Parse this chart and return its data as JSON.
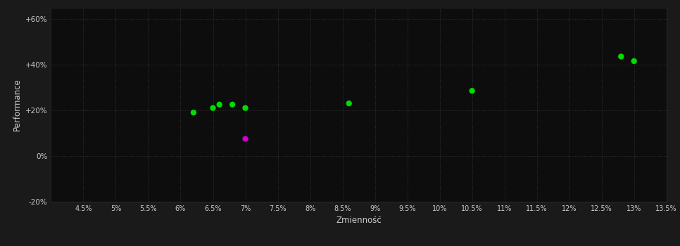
{
  "xlabel": "Zmienność",
  "ylabel": "Performance",
  "background_color": "#1a1a1a",
  "plot_bg_color": "#0d0d0d",
  "grid_color": "#333333",
  "text_color": "#cccccc",
  "xlim": [
    0.04,
    0.135
  ],
  "ylim": [
    -0.2,
    0.65
  ],
  "xticks": [
    0.045,
    0.05,
    0.055,
    0.06,
    0.065,
    0.07,
    0.075,
    0.08,
    0.085,
    0.09,
    0.095,
    0.1,
    0.105,
    0.11,
    0.115,
    0.12,
    0.125,
    0.13,
    0.135
  ],
  "yticks": [
    -0.2,
    0.0,
    0.2,
    0.4,
    0.6
  ],
  "xtick_labels": [
    "4.5%",
    "5%",
    "5.5%",
    "6%",
    "6.5%",
    "7%",
    "7.5%",
    "8%",
    "8.5%",
    "9%",
    "9.5%",
    "10%",
    "10.5%",
    "11%",
    "11.5%",
    "12%",
    "12.5%",
    "13%",
    "13.5%"
  ],
  "ytick_labels": [
    "-20%",
    "0%",
    "+20%",
    "+40%",
    "+60%"
  ],
  "green_points": [
    [
      0.062,
      0.19
    ],
    [
      0.065,
      0.21
    ],
    [
      0.066,
      0.225
    ],
    [
      0.068,
      0.225
    ],
    [
      0.07,
      0.21
    ],
    [
      0.086,
      0.23
    ],
    [
      0.105,
      0.285
    ],
    [
      0.128,
      0.435
    ],
    [
      0.13,
      0.415
    ]
  ],
  "magenta_points": [
    [
      0.07,
      0.075
    ]
  ],
  "green_color": "#00dd00",
  "magenta_color": "#cc00cc",
  "marker_size": 6
}
